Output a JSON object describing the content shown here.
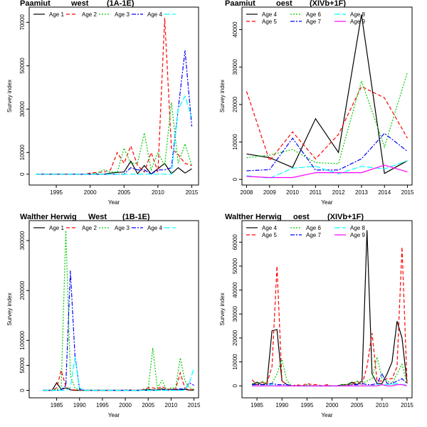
{
  "chart_data": [
    {
      "type": "line",
      "title_parts": [
        "Paamiut",
        "west",
        "(1A-1E)"
      ],
      "xlabel": "Year",
      "ylabel": "Survey index",
      "xlim": [
        1991,
        2016
      ],
      "ylim": [
        -5000,
        77000
      ],
      "xticks": [
        1995,
        2000,
        2005,
        2010,
        2015
      ],
      "yticks": [
        0,
        10000,
        30000,
        50000,
        70000
      ],
      "legend_cols": 5,
      "x": [
        1992,
        1993,
        1994,
        1995,
        1996,
        1997,
        1998,
        1999,
        2000,
        2001,
        2002,
        2003,
        2004,
        2005,
        2006,
        2007,
        2008,
        2009,
        2010,
        2011,
        2012,
        2013,
        2014,
        2015
      ],
      "series": [
        {
          "name": "Age 1",
          "color": "#000000",
          "dash": "none",
          "values": [
            0,
            0,
            0,
            0,
            0,
            0,
            0,
            0,
            0,
            0,
            0,
            500,
            800,
            1000,
            6000,
            200,
            4000,
            100,
            2500,
            5000,
            200,
            3000,
            500,
            2500
          ]
        },
        {
          "name": "Age 2",
          "color": "#ff0000",
          "dash": "5,3",
          "values": [
            0,
            0,
            0,
            0,
            0,
            0,
            0,
            0,
            500,
            800,
            1000,
            2000,
            10000,
            5000,
            13000,
            4000,
            1000,
            10000,
            1000,
            72000,
            12000,
            9000,
            5000,
            4000
          ]
        },
        {
          "name": "Age 3",
          "color": "#00cc00",
          "dash": "2,2",
          "values": [
            0,
            0,
            0,
            0,
            0,
            0,
            0,
            0,
            0,
            500,
            2000,
            1000,
            1000,
            12000,
            5000,
            5000,
            19000,
            2000,
            10000,
            4000,
            33000,
            5000,
            14000,
            4000
          ]
        },
        {
          "name": "Age 4",
          "color": "#0000ff",
          "dash": "6,2,2,2",
          "values": [
            0,
            0,
            0,
            0,
            0,
            0,
            0,
            0,
            0,
            0,
            0,
            0,
            0,
            0,
            3000,
            2000,
            2000,
            100,
            2000,
            2000,
            3000,
            30000,
            57000,
            22000
          ]
        },
        {
          "name": "",
          "color": "#00ffff",
          "dash": "8,3",
          "values": [
            0,
            0,
            0,
            0,
            0,
            0,
            0,
            0,
            0,
            0,
            0,
            0,
            0,
            0,
            0,
            0,
            0,
            0,
            0,
            0,
            0,
            30000,
            36000,
            26000
          ]
        }
      ]
    },
    {
      "type": "line",
      "title_parts": [
        "Paamiut",
        "oest",
        "(XIVb+1F)"
      ],
      "xlabel": "Year",
      "ylabel": "Survey index",
      "xlim": [
        2007.8,
        2015.2
      ],
      "ylim": [
        -1500,
        46000
      ],
      "xticks": [
        2008,
        2009,
        2010,
        2011,
        2012,
        2013,
        2014,
        2015
      ],
      "yticks": [
        0,
        10000,
        20000,
        30000,
        40000
      ],
      "legend_cols": 3,
      "legend_order": [
        0,
        2,
        4,
        1,
        3,
        5
      ],
      "x": [
        2008,
        2009,
        2010,
        2011,
        2012,
        2013,
        2014,
        2015
      ],
      "series": [
        {
          "name": "Age 4",
          "color": "#000000",
          "dash": "none",
          "values": [
            6800,
            5800,
            3200,
            16200,
            7200,
            44000,
            1600,
            5000
          ]
        },
        {
          "name": "Age 5",
          "color": "#ff0000",
          "dash": "5,3",
          "values": [
            23500,
            5000,
            12700,
            5500,
            12000,
            24800,
            21800,
            11000
          ]
        },
        {
          "name": "Age 6",
          "color": "#00cc00",
          "dash": "2,2",
          "values": [
            5800,
            6500,
            8000,
            4500,
            4200,
            26300,
            8700,
            28600
          ]
        },
        {
          "name": "Age 7",
          "color": "#0000ff",
          "dash": "6,2,2,2",
          "values": [
            2300,
            2600,
            11000,
            2500,
            2500,
            5500,
            12300,
            7500
          ]
        },
        {
          "name": "Age 8",
          "color": "#00ffff",
          "dash": "8,3",
          "values": [
            1000,
            300,
            3000,
            3500,
            1500,
            3500,
            2800,
            5000
          ]
        },
        {
          "name": "Age 9",
          "color": "#ff00ff",
          "dash": "none",
          "values": [
            800,
            500,
            500,
            1800,
            1800,
            1800,
            3800,
            2000
          ]
        }
      ]
    },
    {
      "type": "line",
      "title_parts": [
        "Walther Herwig",
        "West",
        "(1B-1E)"
      ],
      "xlabel": "Year",
      "ylabel": "Survey index",
      "xlim": [
        1979,
        2016
      ],
      "ylim": [
        -15000,
        340000
      ],
      "xticks": [
        1985,
        1990,
        1995,
        2000,
        2005,
        2010,
        2015
      ],
      "yticks": [
        0,
        50000,
        100000,
        200000,
        300000
      ],
      "legend_cols": 5,
      "x": [
        1982,
        1983,
        1984,
        1985,
        1986,
        1987,
        1988,
        1989,
        1990,
        1991,
        1992,
        1993,
        1994,
        1995,
        1996,
        1997,
        1998,
        1999,
        2000,
        2001,
        2002,
        2003,
        2004,
        2005,
        2006,
        2007,
        2008,
        2009,
        2010,
        2011,
        2012,
        2013,
        2014,
        2015
      ],
      "series": [
        {
          "name": "Age 1",
          "color": "#000000",
          "dash": "none",
          "values": [
            0,
            0,
            0,
            15000,
            2000,
            5000,
            1000,
            0,
            0,
            0,
            0,
            0,
            0,
            0,
            0,
            0,
            0,
            0,
            0,
            0,
            0,
            0,
            1000,
            2000,
            500,
            1000,
            3000,
            500,
            2000,
            1000,
            1000,
            2000,
            500,
            500
          ]
        },
        {
          "name": "Age 2",
          "color": "#ff0000",
          "dash": "5,3",
          "values": [
            0,
            0,
            0,
            5000,
            40000,
            8000,
            2000,
            500,
            0,
            0,
            0,
            0,
            0,
            0,
            0,
            0,
            0,
            0,
            500,
            1000,
            0,
            0,
            2000,
            5000,
            5000,
            3000,
            8000,
            2000,
            2000,
            3000,
            35000,
            5000,
            1000,
            2000
          ]
        },
        {
          "name": "Age 3",
          "color": "#00cc00",
          "dash": "2,2",
          "values": [
            0,
            0,
            0,
            2000,
            5000,
            320000,
            30000,
            5000,
            0,
            0,
            0,
            0,
            0,
            0,
            0,
            0,
            0,
            0,
            0,
            0,
            0,
            0,
            0,
            2000,
            85000,
            5000,
            20000,
            2000,
            5000,
            5000,
            65000,
            20000,
            5000,
            2000
          ]
        },
        {
          "name": "Age 4",
          "color": "#0000ff",
          "dash": "6,2,2,2",
          "values": [
            0,
            0,
            0,
            0,
            1000,
            10000,
            240000,
            70000,
            2000,
            0,
            0,
            0,
            0,
            0,
            0,
            0,
            0,
            0,
            0,
            0,
            0,
            0,
            0,
            0,
            0,
            0,
            500,
            500,
            500,
            2000,
            3000,
            2000,
            15000,
            10000
          ]
        },
        {
          "name": "",
          "color": "#00ffff",
          "dash": "8,3",
          "values": [
            0,
            0,
            0,
            0,
            0,
            0,
            5000,
            65000,
            5000,
            0,
            0,
            0,
            0,
            0,
            0,
            0,
            0,
            0,
            0,
            0,
            0,
            0,
            0,
            0,
            0,
            0,
            0,
            0,
            0,
            0,
            0,
            0,
            15000,
            45000
          ]
        }
      ]
    },
    {
      "type": "line",
      "title_parts": [
        "Walther Herwig",
        "oest",
        "(XIVb+1F)"
      ],
      "xlabel": "Year",
      "ylabel": "Survey index",
      "xlim": [
        1982,
        2016
      ],
      "ylim": [
        -5000,
        69000
      ],
      "xticks": [
        1985,
        1990,
        1995,
        2000,
        2005,
        2010,
        2015
      ],
      "yticks": [
        0,
        10000,
        20000,
        30000,
        40000,
        50000,
        60000
      ],
      "legend_cols": 3,
      "legend_order": [
        0,
        2,
        4,
        1,
        3,
        5
      ],
      "x": [
        1984,
        1985,
        1986,
        1987,
        1988,
        1989,
        1990,
        1991,
        1992,
        1993,
        1994,
        1995,
        1996,
        1997,
        1998,
        1999,
        2000,
        2001,
        2002,
        2003,
        2004,
        2005,
        2006,
        2007,
        2008,
        2009,
        2010,
        2011,
        2012,
        2013,
        2014,
        2015
      ],
      "series": [
        {
          "name": "Age 4",
          "color": "#000000",
          "dash": "none",
          "values": [
            500,
            1500,
            500,
            1000,
            23000,
            23500,
            2000,
            500,
            0,
            0,
            0,
            0,
            0,
            0,
            0,
            0,
            0,
            0,
            500,
            500,
            1500,
            500,
            2000,
            65000,
            5000,
            1000,
            1000,
            5000,
            10000,
            27000,
            20000,
            1000
          ]
        },
        {
          "name": "Age 5",
          "color": "#ff0000",
          "dash": "5,3",
          "values": [
            2500,
            500,
            1500,
            1000,
            8000,
            50000,
            2000,
            500,
            0,
            500,
            0,
            1000,
            500,
            500,
            0,
            500,
            0,
            0,
            0,
            500,
            500,
            2000,
            500,
            8000,
            22000,
            2000,
            2000,
            3000,
            3000,
            8000,
            58000,
            1000
          ]
        },
        {
          "name": "Age 6",
          "color": "#00cc00",
          "dash": "2,2",
          "values": [
            1000,
            500,
            2000,
            1000,
            1000,
            5000,
            11000,
            2000,
            0,
            0,
            0,
            500,
            0,
            0,
            0,
            0,
            0,
            0,
            500,
            500,
            1000,
            2000,
            1000,
            2000,
            3000,
            12000,
            3000,
            2000,
            1000,
            5000,
            9000,
            1000
          ]
        },
        {
          "name": "Age 7",
          "color": "#0000ff",
          "dash": "6,2,2,2",
          "values": [
            500,
            500,
            500,
            500,
            1000,
            500,
            500,
            500,
            0,
            0,
            0,
            0,
            0,
            0,
            0,
            0,
            0,
            0,
            0,
            0,
            500,
            500,
            1000,
            500,
            500,
            1000,
            5000,
            1000,
            1000,
            2000,
            3000,
            1000
          ]
        },
        {
          "name": "Age 8",
          "color": "#00ffff",
          "dash": "8,3",
          "values": [
            0,
            0,
            0,
            0,
            500,
            0,
            0,
            0,
            0,
            0,
            0,
            0,
            0,
            0,
            0,
            0,
            0,
            0,
            0,
            0,
            0,
            0,
            0,
            0,
            0,
            500,
            500,
            500,
            500,
            1000,
            500,
            500
          ]
        },
        {
          "name": "Age 9",
          "color": "#ff00ff",
          "dash": "none",
          "values": [
            0,
            0,
            0,
            0,
            0,
            0,
            0,
            0,
            0,
            0,
            0,
            0,
            0,
            0,
            0,
            0,
            0,
            0,
            0,
            0,
            0,
            0,
            0,
            0,
            0,
            0,
            500,
            0,
            0,
            500,
            500,
            0
          ]
        }
      ]
    }
  ]
}
